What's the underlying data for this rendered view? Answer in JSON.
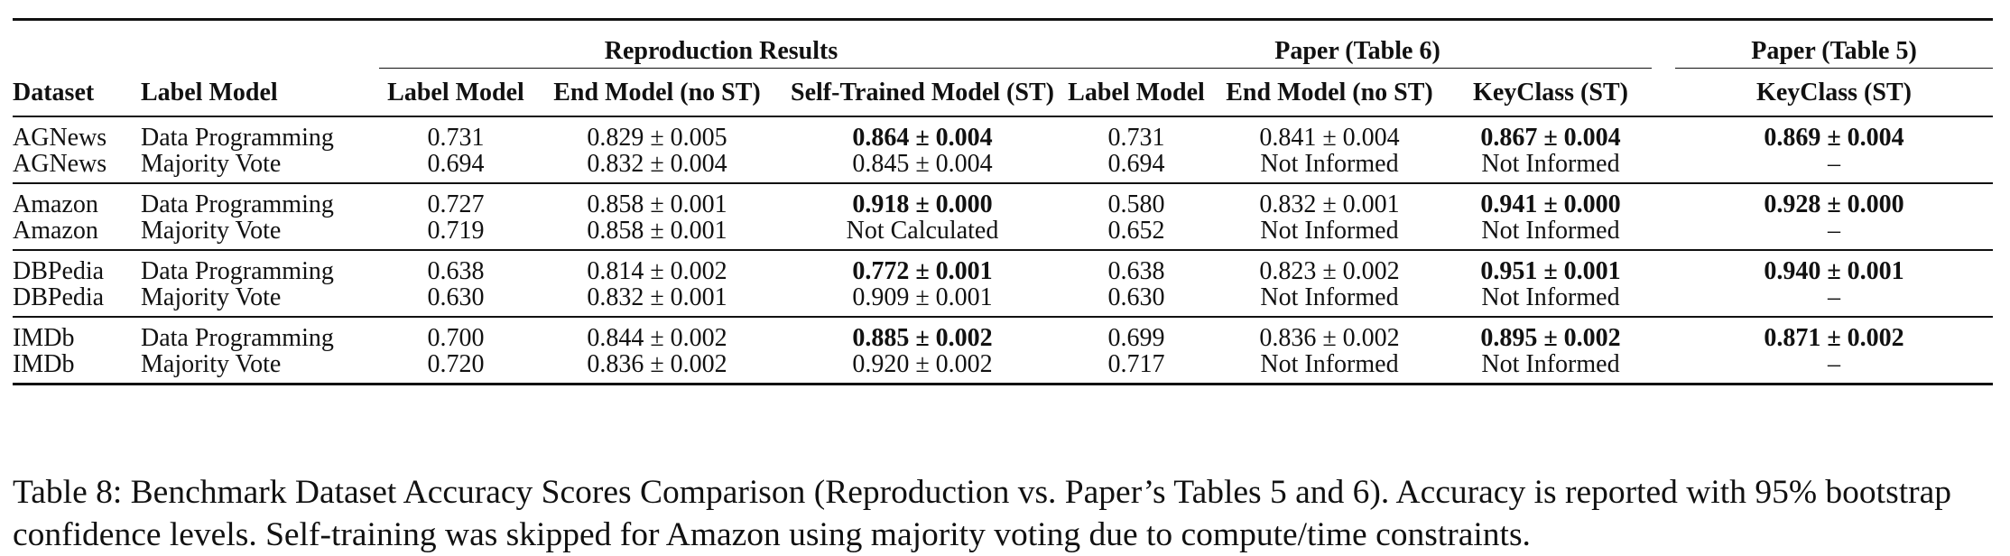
{
  "table": {
    "group_headers": {
      "reproduction": "Reproduction Results",
      "paper6": "Paper (Table 6)",
      "paper5": "Paper (Table 5)"
    },
    "columns": {
      "dataset": "Dataset",
      "label_model": "Label Model",
      "repro_label_model": "Label Model",
      "repro_end_model": "End Model (no ST)",
      "repro_self_trained": "Self-Trained Model (ST)",
      "p6_label_model": "Label Model",
      "p6_end_model": "End Model (no ST)",
      "p6_keyclass": "KeyClass (ST)",
      "p5_keyclass": "KeyClass (ST)"
    },
    "rows": [
      {
        "dataset": "AGNews",
        "label_model": "Data Programming",
        "repro_label": "0.731",
        "repro_end": "0.829 ± 0.005",
        "repro_st": "0.864 ± 0.004",
        "p6_label": "0.731",
        "p6_end": "0.841 ± 0.004",
        "p6_keyclass": "0.867 ± 0.004",
        "p5_keyclass": "0.869 ± 0.004"
      },
      {
        "dataset": "AGNews",
        "label_model": "Majority Vote",
        "repro_label": "0.694",
        "repro_end": "0.832 ± 0.004",
        "repro_st": "0.845 ± 0.004",
        "p6_label": "0.694",
        "p6_end": "Not Informed",
        "p6_keyclass": "Not Informed",
        "p5_keyclass": "–"
      },
      {
        "dataset": "Amazon",
        "label_model": "Data Programming",
        "repro_label": "0.727",
        "repro_end": "0.858 ± 0.001",
        "repro_st": "0.918 ± 0.000",
        "p6_label": "0.580",
        "p6_end": "0.832 ± 0.001",
        "p6_keyclass": "0.941 ± 0.000",
        "p5_keyclass": "0.928 ± 0.000"
      },
      {
        "dataset": "Amazon",
        "label_model": "Majority Vote",
        "repro_label": "0.719",
        "repro_end": "0.858 ± 0.001",
        "repro_st": "Not Calculated",
        "p6_label": "0.652",
        "p6_end": "Not Informed",
        "p6_keyclass": "Not Informed",
        "p5_keyclass": "–"
      },
      {
        "dataset": "DBPedia",
        "label_model": "Data Programming",
        "repro_label": "0.638",
        "repro_end": "0.814 ± 0.002",
        "repro_st": "0.772 ± 0.001",
        "p6_label": "0.638",
        "p6_end": "0.823 ± 0.002",
        "p6_keyclass": "0.951 ± 0.001",
        "p5_keyclass": "0.940 ± 0.001"
      },
      {
        "dataset": "DBPedia",
        "label_model": "Majority Vote",
        "repro_label": "0.630",
        "repro_end": "0.832 ± 0.001",
        "repro_st": "0.909 ± 0.001",
        "p6_label": "0.630",
        "p6_end": "Not Informed",
        "p6_keyclass": "Not Informed",
        "p5_keyclass": "–"
      },
      {
        "dataset": "IMDb",
        "label_model": "Data Programming",
        "repro_label": "0.700",
        "repro_end": "0.844 ± 0.002",
        "repro_st": "0.885 ± 0.002",
        "p6_label": "0.699",
        "p6_end": "0.836 ± 0.002",
        "p6_keyclass": "0.895 ± 0.002",
        "p5_keyclass": "0.871 ± 0.002"
      },
      {
        "dataset": "IMDb",
        "label_model": "Majority Vote",
        "repro_label": "0.720",
        "repro_end": "0.836 ± 0.002",
        "repro_st": "0.920 ± 0.002",
        "p6_label": "0.717",
        "p6_end": "Not Informed",
        "p6_keyclass": "Not Informed",
        "p5_keyclass": "–"
      }
    ]
  },
  "caption": "Table 8: Benchmark Dataset Accuracy Scores Comparison (Reproduction vs. Paper’s Tables 5 and 6). Accuracy is reported with 95% bootstrap confidence levels. Self-training was skipped for Amazon using majority voting due to compute/time constraints."
}
